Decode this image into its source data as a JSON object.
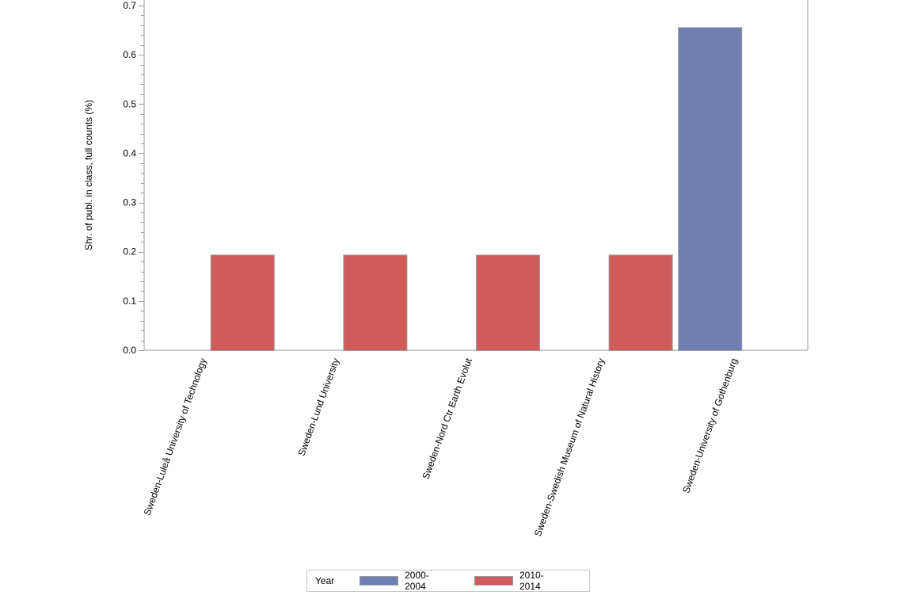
{
  "chart_data": {
    "type": "bar",
    "title": "",
    "xlabel": "",
    "ylabel": "Shr. of publ. in class, full counts (%)",
    "ylim": [
      0,
      0.7
    ],
    "yticks": [
      "0.0",
      "0.1",
      "0.2",
      "0.3",
      "0.4",
      "0.5",
      "0.6",
      "0.7"
    ],
    "grid": false,
    "legend_position": "bottom",
    "categories": [
      "Sweden-Luleå University of Technology",
      "Sweden-Lund University",
      "Sweden-Nord Ctr Earth Evolut",
      "Sweden-Swedish Museum of Natural History",
      "Sweden-University of Gothenburg"
    ],
    "series": [
      {
        "name": "2000-2004",
        "color": "#6f7eb3",
        "values": [
          null,
          null,
          null,
          null,
          0.656
        ]
      },
      {
        "name": "2010-2014",
        "color": "#d05b5b",
        "values": [
          0.194,
          0.194,
          0.194,
          0.194,
          null
        ]
      }
    ]
  },
  "legend": {
    "title": "Year",
    "items": [
      {
        "label": "2000-2004",
        "color": "#6f7eb3"
      },
      {
        "label": "2010-2014",
        "color": "#d05b5b"
      }
    ]
  }
}
